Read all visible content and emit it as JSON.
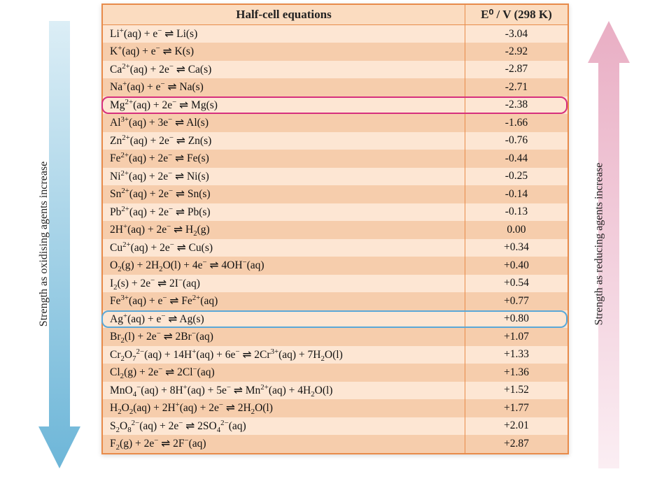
{
  "table": {
    "header_eq": "Half-cell equations",
    "header_val": "E⁰ / V (298 K)",
    "rows": [
      {
        "eq": "Li<sup>+</sup>(aq) + e<sup>−</sup>  ⇌  Li(s)",
        "val": "-3.04"
      },
      {
        "eq": "K<sup>+</sup>(aq) + e<sup>−</sup>  ⇌  K(s)",
        "val": "-2.92"
      },
      {
        "eq": "Ca<sup>2+</sup>(aq) + 2e<sup>−</sup>  ⇌  Ca(s)",
        "val": "-2.87"
      },
      {
        "eq": "Na<sup>+</sup>(aq) + e<sup>−</sup>  ⇌  Na(s)",
        "val": "-2.71"
      },
      {
        "eq": "Mg<sup>2+</sup>(aq) + 2e<sup>−</sup>  ⇌  Mg(s)",
        "val": "-2.38",
        "highlight": "pink"
      },
      {
        "eq": "Al<sup>3+</sup>(aq) + 3e<sup>−</sup>  ⇌  Al(s)",
        "val": "-1.66"
      },
      {
        "eq": "Zn<sup>2+</sup>(aq) + 2e<sup>−</sup>  ⇌  Zn(s)",
        "val": "-0.76"
      },
      {
        "eq": "Fe<sup>2+</sup>(aq) + 2e<sup>−</sup>  ⇌  Fe(s)",
        "val": "-0.44"
      },
      {
        "eq": "Ni<sup>2+</sup>(aq) + 2e<sup>−</sup>  ⇌  Ni(s)",
        "val": "-0.25"
      },
      {
        "eq": "Sn<sup>2+</sup>(aq) + 2e<sup>−</sup>  ⇌  Sn(s)",
        "val": "-0.14"
      },
      {
        "eq": "Pb<sup>2+</sup>(aq) + 2e<sup>−</sup>  ⇌  Pb(s)",
        "val": "-0.13"
      },
      {
        "eq": "2H<sup>+</sup>(aq) + 2e<sup>−</sup>  ⇌  H<sub>2</sub>(g)",
        "val": "0.00"
      },
      {
        "eq": "Cu<sup>2+</sup>(aq) + 2e<sup>−</sup>  ⇌  Cu(s)",
        "val": "+0.34"
      },
      {
        "eq": "O<sub>2</sub>(g) + 2H<sub>2</sub>O(l) + 4e<sup>−</sup>  ⇌  4OH<sup>−</sup>(aq)",
        "val": "+0.40"
      },
      {
        "eq": "I<sub>2</sub>(s) + 2e<sup>−</sup>  ⇌  2I<sup>−</sup>(aq)",
        "val": "+0.54"
      },
      {
        "eq": "Fe<sup>3+</sup>(aq) + e<sup>−</sup>  ⇌  Fe<sup>2+</sup>(aq)",
        "val": "+0.77"
      },
      {
        "eq": "Ag<sup>+</sup>(aq) + e<sup>−</sup>  ⇌  Ag(s)",
        "val": "+0.80",
        "highlight": "blue"
      },
      {
        "eq": "Br<sub>2</sub>(l) + 2e<sup>−</sup>  ⇌  2Br<sup>−</sup>(aq)",
        "val": "+1.07"
      },
      {
        "eq": "Cr<sub>2</sub>O<sub>7</sub><sup>2−</sup>(aq) + 14H<sup>+</sup>(aq) + 6e<sup>−</sup>  ⇌  2Cr<sup>3+</sup>(aq) + 7H<sub>2</sub>O(l)",
        "val": "+1.33"
      },
      {
        "eq": "Cl<sub>2</sub>(g) + 2e<sup>−</sup>  ⇌  2Cl<sup>−</sup>(aq)",
        "val": "+1.36"
      },
      {
        "eq": "MnO<sub>4</sub><sup>−</sup>(aq) + 8H<sup>+</sup>(aq) + 5e<sup>−</sup>  ⇌  Mn<sup>2+</sup>(aq) + 4H<sub>2</sub>O(l)",
        "val": "+1.52"
      },
      {
        "eq": "H<sub>2</sub>O<sub>2</sub>(aq) + 2H<sup>+</sup>(aq) + 2e<sup>−</sup>  ⇌  2H<sub>2</sub>O(l)",
        "val": "+1.77"
      },
      {
        "eq": "S<sub>2</sub>O<sub>8</sub><sup>2−</sup>(aq) + 2e<sup>−</sup>  ⇌  2SO<sub>4</sub><sup>2−</sup>(aq)",
        "val": "+2.01"
      },
      {
        "eq": "F<sub>2</sub>(g) + 2e<sup>−</sup>  ⇌  2F<sup>−</sup>(aq)",
        "val": "+2.87"
      }
    ],
    "row_even_color": "#fde6d3",
    "row_odd_color": "#f6cdac",
    "border_color": "#e88b4a",
    "highlight_pink_color": "#d6307d",
    "highlight_blue_color": "#5aa8d8"
  },
  "arrows": {
    "left_label": "Strength as oxidising agents increase",
    "right_label": "Strength as reducing agents increase",
    "left_gradient_top": "#dceef6",
    "left_gradient_bottom": "#6db6d8",
    "right_gradient_top": "#e9aec4",
    "right_gradient_bottom": "#fbeef3"
  }
}
